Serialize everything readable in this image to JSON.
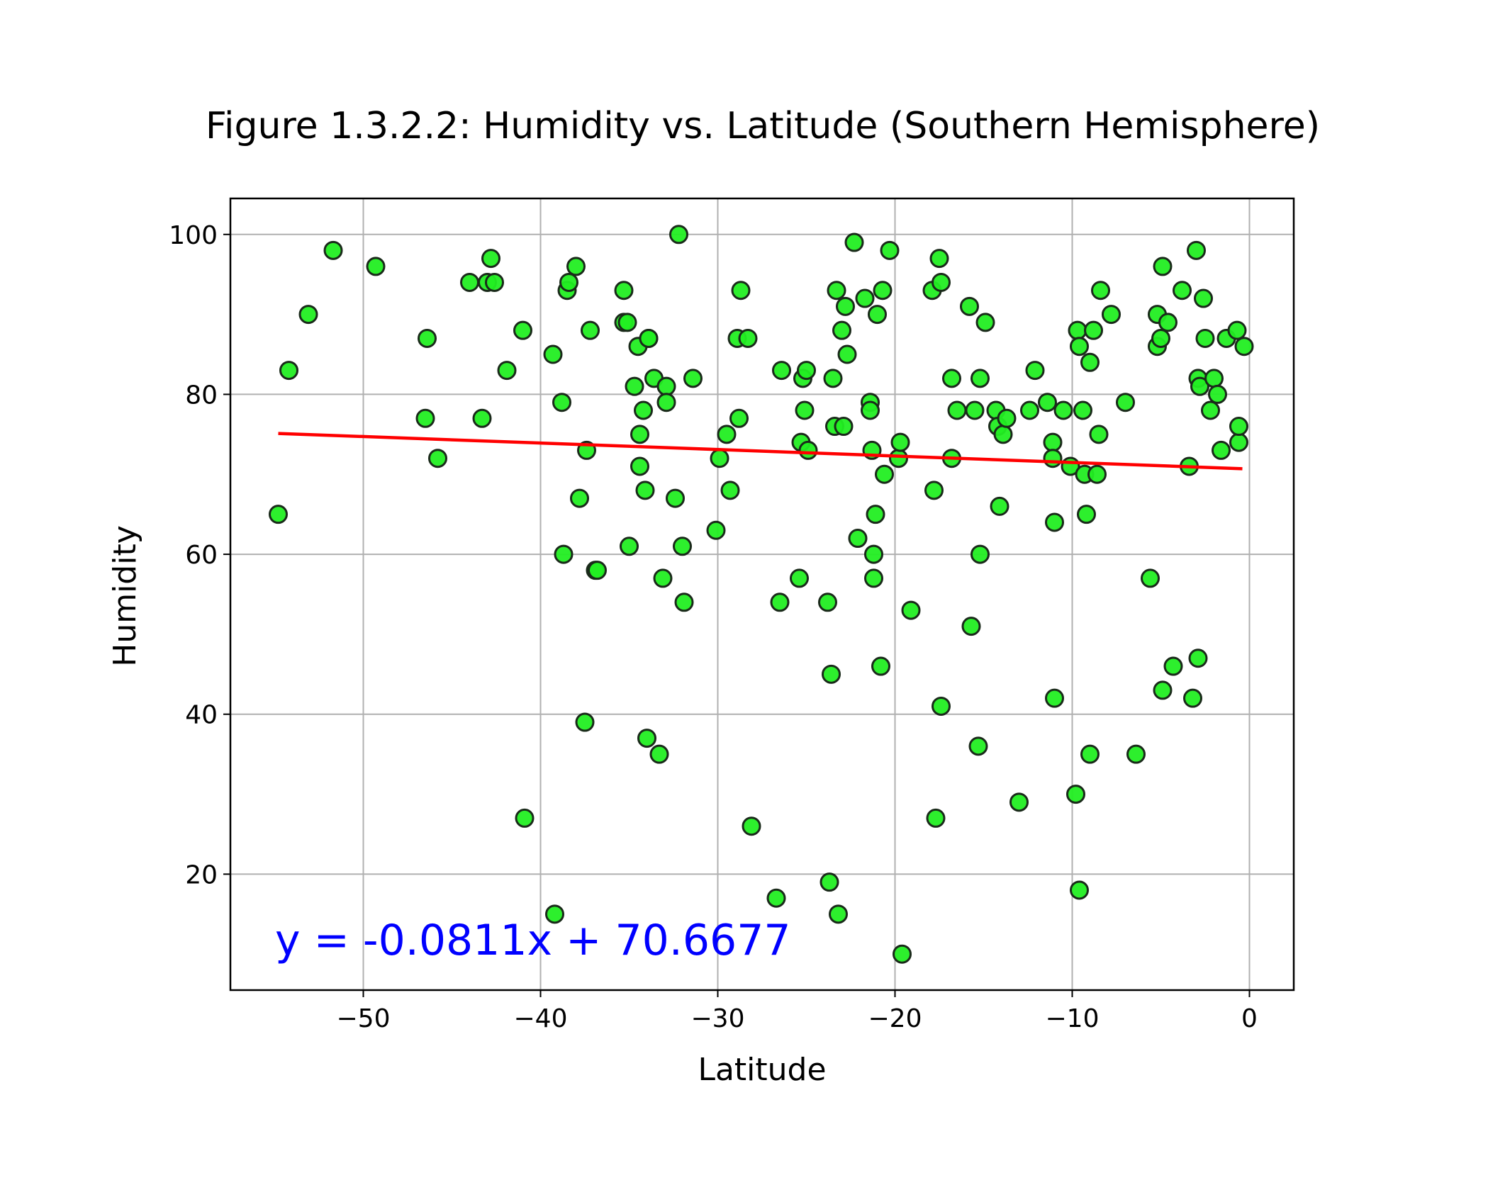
{
  "chart_data": {
    "type": "scatter",
    "title": "Figure 1.3.2.2: Humidity vs. Latitude (Southern Hemisphere)",
    "xlabel": "Latitude",
    "ylabel": "Humidity",
    "xlim": [
      -57.5,
      2.5
    ],
    "ylim": [
      5.5,
      104.5
    ],
    "xticks": [
      -50,
      -40,
      -30,
      -20,
      -10,
      0
    ],
    "xtick_labels": [
      "−50",
      "−40",
      "−30",
      "−20",
      "−10",
      "0"
    ],
    "yticks": [
      20,
      40,
      60,
      80,
      100
    ],
    "ytick_labels": [
      "20",
      "40",
      "60",
      "80",
      "100"
    ],
    "grid": true,
    "colors": {
      "point_fill": "#22ee22",
      "point_edge": "#1a2a1a",
      "regression": "#ff0000",
      "equation": "#0000ff",
      "grid": "#b0b0b0"
    },
    "regression": {
      "slope": -0.0811,
      "intercept": 70.6677,
      "x_range": [
        -54.8,
        -0.4
      ]
    },
    "equation": "y = -0.0811x + 70.6677",
    "points": [
      [
        -54.8,
        65
      ],
      [
        -54.2,
        83
      ],
      [
        -53.1,
        90
      ],
      [
        -51.7,
        98
      ],
      [
        -49.3,
        96
      ],
      [
        -46.4,
        87
      ],
      [
        -46.5,
        77
      ],
      [
        -45.8,
        72
      ],
      [
        -44.0,
        94
      ],
      [
        -43.3,
        77
      ],
      [
        -43.0,
        94
      ],
      [
        -42.8,
        97
      ],
      [
        -42.6,
        94
      ],
      [
        -41.9,
        83
      ],
      [
        -41.0,
        88
      ],
      [
        -40.9,
        27
      ],
      [
        -39.3,
        85
      ],
      [
        -39.2,
        15
      ],
      [
        -38.8,
        79
      ],
      [
        -38.7,
        60
      ],
      [
        -38.5,
        93
      ],
      [
        -38.4,
        94
      ],
      [
        -38.0,
        96
      ],
      [
        -37.8,
        67
      ],
      [
        -37.5,
        39
      ],
      [
        -37.4,
        73
      ],
      [
        -37.2,
        88
      ],
      [
        -36.9,
        58
      ],
      [
        -36.8,
        58
      ],
      [
        -35.3,
        93
      ],
      [
        -35.3,
        89
      ],
      [
        -35.1,
        89
      ],
      [
        -35.0,
        61
      ],
      [
        -34.7,
        81
      ],
      [
        -34.5,
        86
      ],
      [
        -34.4,
        75
      ],
      [
        -34.4,
        71
      ],
      [
        -34.2,
        78
      ],
      [
        -34.1,
        68
      ],
      [
        -34.0,
        37
      ],
      [
        -33.9,
        87
      ],
      [
        -33.9,
        87
      ],
      [
        -33.6,
        82
      ],
      [
        -33.3,
        35
      ],
      [
        -33.1,
        57
      ],
      [
        -32.9,
        81
      ],
      [
        -32.9,
        79
      ],
      [
        -32.4,
        67
      ],
      [
        -32.2,
        100
      ],
      [
        -32.0,
        61
      ],
      [
        -31.9,
        54
      ],
      [
        -31.4,
        82
      ],
      [
        -30.1,
        63
      ],
      [
        -29.9,
        72
      ],
      [
        -29.5,
        75
      ],
      [
        -29.3,
        68
      ],
      [
        -28.9,
        87
      ],
      [
        -28.8,
        77
      ],
      [
        -28.7,
        93
      ],
      [
        -28.3,
        87
      ],
      [
        -28.1,
        26
      ],
      [
        -26.7,
        17
      ],
      [
        -26.5,
        54
      ],
      [
        -26.4,
        83
      ],
      [
        -25.4,
        57
      ],
      [
        -25.3,
        74
      ],
      [
        -25.2,
        82
      ],
      [
        -25.1,
        78
      ],
      [
        -25.0,
        83
      ],
      [
        -24.9,
        73
      ],
      [
        -23.8,
        54
      ],
      [
        -23.7,
        19
      ],
      [
        -23.6,
        45
      ],
      [
        -23.5,
        82
      ],
      [
        -23.4,
        76
      ],
      [
        -23.3,
        93
      ],
      [
        -23.2,
        15
      ],
      [
        -23.0,
        88
      ],
      [
        -22.9,
        76
      ],
      [
        -22.8,
        91
      ],
      [
        -22.7,
        85
      ],
      [
        -22.3,
        99
      ],
      [
        -22.1,
        62
      ],
      [
        -21.7,
        92
      ],
      [
        -21.4,
        79
      ],
      [
        -21.4,
        78
      ],
      [
        -21.3,
        73
      ],
      [
        -21.2,
        60
      ],
      [
        -21.2,
        57
      ],
      [
        -21.1,
        65
      ],
      [
        -21.0,
        90
      ],
      [
        -20.8,
        46
      ],
      [
        -20.7,
        93
      ],
      [
        -20.6,
        70
      ],
      [
        -20.3,
        98
      ],
      [
        -19.8,
        72
      ],
      [
        -19.7,
        74
      ],
      [
        -19.6,
        10
      ],
      [
        -19.1,
        53
      ],
      [
        -17.9,
        93
      ],
      [
        -17.8,
        68
      ],
      [
        -17.7,
        27
      ],
      [
        -17.5,
        97
      ],
      [
        -17.4,
        94
      ],
      [
        -17.4,
        41
      ],
      [
        -16.8,
        82
      ],
      [
        -16.8,
        72
      ],
      [
        -16.5,
        78
      ],
      [
        -15.8,
        91
      ],
      [
        -15.7,
        51
      ],
      [
        -15.5,
        78
      ],
      [
        -15.3,
        36
      ],
      [
        -15.2,
        82
      ],
      [
        -15.2,
        60
      ],
      [
        -14.9,
        89
      ],
      [
        -14.3,
        78
      ],
      [
        -14.2,
        76
      ],
      [
        -14.1,
        66
      ],
      [
        -13.9,
        75
      ],
      [
        -13.7,
        77
      ],
      [
        -13.0,
        29
      ],
      [
        -12.4,
        78
      ],
      [
        -12.1,
        83
      ],
      [
        -11.4,
        79
      ],
      [
        -11.1,
        74
      ],
      [
        -11.1,
        72
      ],
      [
        -11.0,
        64
      ],
      [
        -11.0,
        42
      ],
      [
        -10.5,
        78
      ],
      [
        -10.1,
        71
      ],
      [
        -9.8,
        30
      ],
      [
        -9.7,
        88
      ],
      [
        -9.6,
        86
      ],
      [
        -9.6,
        18
      ],
      [
        -9.4,
        78
      ],
      [
        -9.3,
        70
      ],
      [
        -9.2,
        65
      ],
      [
        -9.0,
        84
      ],
      [
        -9.0,
        35
      ],
      [
        -8.8,
        88
      ],
      [
        -8.6,
        70
      ],
      [
        -8.5,
        75
      ],
      [
        -8.4,
        93
      ],
      [
        -7.8,
        90
      ],
      [
        -7.0,
        79
      ],
      [
        -6.4,
        35
      ],
      [
        -5.6,
        57
      ],
      [
        -5.2,
        90
      ],
      [
        -5.2,
        86
      ],
      [
        -5.0,
        87
      ],
      [
        -4.9,
        96
      ],
      [
        -4.9,
        43
      ],
      [
        -4.6,
        89
      ],
      [
        -4.3,
        46
      ],
      [
        -3.8,
        93
      ],
      [
        -3.4,
        71
      ],
      [
        -3.2,
        42
      ],
      [
        -3.0,
        98
      ],
      [
        -2.9,
        82
      ],
      [
        -2.9,
        47
      ],
      [
        -2.8,
        81
      ],
      [
        -2.6,
        92
      ],
      [
        -2.5,
        87
      ],
      [
        -2.2,
        78
      ],
      [
        -2.0,
        82
      ],
      [
        -1.8,
        80
      ],
      [
        -1.6,
        73
      ],
      [
        -1.3,
        87
      ],
      [
        -0.7,
        88
      ],
      [
        -0.6,
        74
      ],
      [
        -0.6,
        76
      ],
      [
        -0.3,
        86
      ]
    ]
  }
}
